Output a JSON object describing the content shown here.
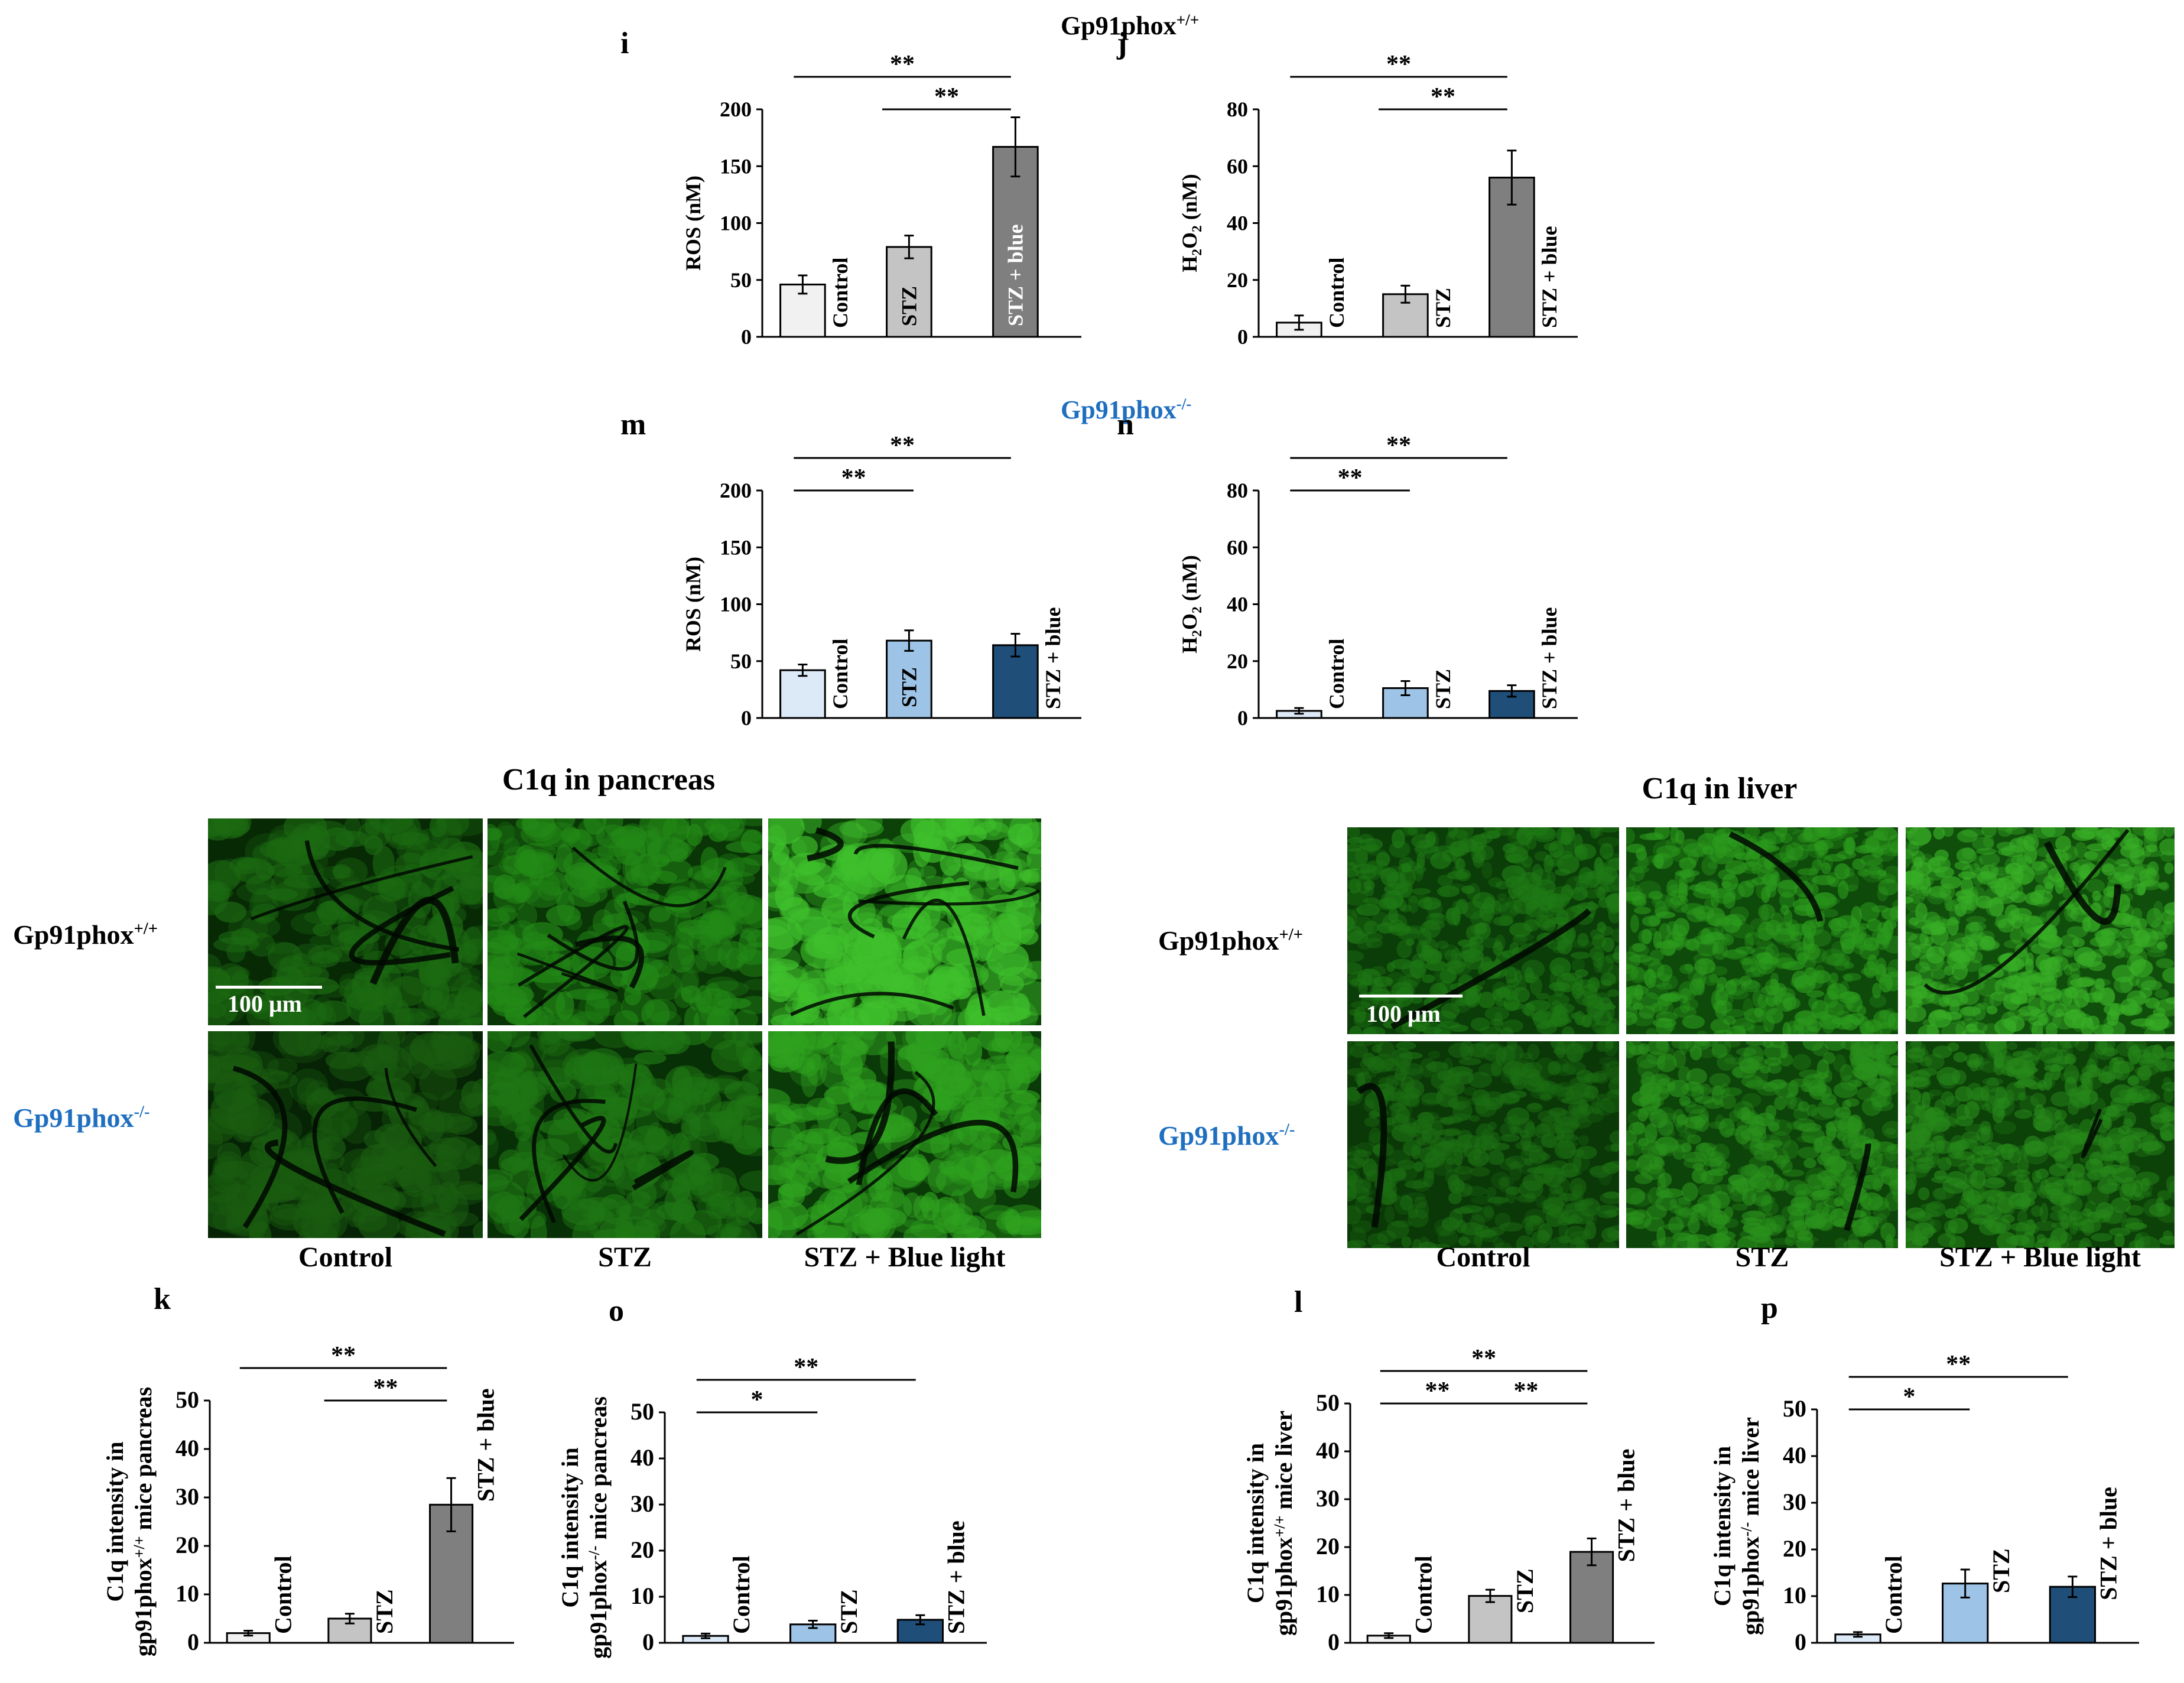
{
  "top_titles": {
    "wt": "Gp91phox+/+",
    "ko": "Gp91phox-/-"
  },
  "colors": {
    "control_wt": "#f1f1f1",
    "stz_wt": "#c4c4c4",
    "stzblue_wt": "#7f7f7f",
    "control_ko": "#dce9f7",
    "stz_ko": "#9dc3e6",
    "stzblue_ko": "#1f4e79",
    "ko_text": "#1f6fc0"
  },
  "chart_data": [
    {
      "id": "i",
      "type": "bar",
      "panel": "i",
      "ylabel": "ROS (nM)",
      "ylim": [
        0,
        200
      ],
      "yticks": [
        0,
        50,
        100,
        150,
        200
      ],
      "categories": [
        "Control",
        "STZ",
        "STZ + blue"
      ],
      "values": [
        46,
        79,
        167
      ],
      "errors": [
        8,
        10,
        26
      ],
      "colors": [
        "#f1f1f1",
        "#c4c4c4",
        "#7f7f7f"
      ],
      "label_inside": [
        false,
        true,
        true
      ],
      "significance": [
        {
          "from": 0,
          "to": 2,
          "label": "**"
        },
        {
          "from": 1,
          "to": 2,
          "label": "**"
        }
      ]
    },
    {
      "id": "j",
      "type": "bar",
      "panel": "j",
      "ylabel": "H2O2 (nM)",
      "ylim": [
        0,
        80
      ],
      "yticks": [
        0,
        20,
        40,
        60,
        80
      ],
      "categories": [
        "Control",
        "STZ",
        "STZ + blue"
      ],
      "values": [
        5,
        15,
        56
      ],
      "errors": [
        2.5,
        3,
        9.5
      ],
      "colors": [
        "#f1f1f1",
        "#c4c4c4",
        "#7f7f7f"
      ],
      "label_inside": [
        false,
        false,
        false
      ],
      "significance": [
        {
          "from": 0,
          "to": 2,
          "label": "**"
        },
        {
          "from": 1,
          "to": 2,
          "label": "**"
        }
      ]
    },
    {
      "id": "m",
      "type": "bar",
      "panel": "m",
      "ylabel": "ROS (nM)",
      "ylim": [
        0,
        200
      ],
      "yticks": [
        0,
        50,
        100,
        150,
        200
      ],
      "categories": [
        "Control",
        "STZ",
        "STZ + blue"
      ],
      "values": [
        42,
        68,
        64
      ],
      "errors": [
        5,
        9,
        10
      ],
      "colors": [
        "#dce9f7",
        "#9dc3e6",
        "#1f4e79"
      ],
      "label_inside": [
        false,
        true,
        false
      ],
      "significance": [
        {
          "from": 0,
          "to": 1,
          "label": "**"
        },
        {
          "from": 0,
          "to": 2,
          "label": "**"
        }
      ]
    },
    {
      "id": "n",
      "type": "bar",
      "panel": "n",
      "ylabel": "H2O2 (nM)",
      "ylim": [
        0,
        80
      ],
      "yticks": [
        0,
        20,
        40,
        60,
        80
      ],
      "categories": [
        "Control",
        "STZ",
        "STZ + blue"
      ],
      "values": [
        2.5,
        10.5,
        9.5
      ],
      "errors": [
        1,
        2.5,
        2
      ],
      "colors": [
        "#dce9f7",
        "#9dc3e6",
        "#1f4e79"
      ],
      "label_inside": [
        false,
        false,
        false
      ],
      "significance": [
        {
          "from": 0,
          "to": 1,
          "label": "**"
        },
        {
          "from": 0,
          "to": 2,
          "label": "**"
        }
      ]
    },
    {
      "id": "k",
      "type": "bar",
      "panel": "k",
      "ylabel": "C1q intensity in gp91phox+/+ mice pancreas",
      "ylim": [
        0,
        50
      ],
      "yticks": [
        0,
        10,
        20,
        30,
        40,
        50
      ],
      "categories": [
        "Control",
        "STZ",
        "STZ + blue"
      ],
      "values": [
        2,
        5,
        28.5
      ],
      "errors": [
        0.5,
        1,
        5.5
      ],
      "colors": [
        "#f1f1f1",
        "#c4c4c4",
        "#7f7f7f"
      ],
      "label_inside": [
        false,
        false,
        false
      ],
      "significance": [
        {
          "from": 0,
          "to": 2,
          "label": "**"
        },
        {
          "from": 1,
          "to": 2,
          "label": "**"
        }
      ]
    },
    {
      "id": "o",
      "type": "bar",
      "panel": "o",
      "ylabel": "C1q intensity in gp91phox-/- mice pancreas",
      "ylim": [
        0,
        50
      ],
      "yticks": [
        0,
        10,
        20,
        30,
        40,
        50
      ],
      "categories": [
        "Control",
        "STZ",
        "STZ + blue"
      ],
      "values": [
        1.5,
        4,
        5
      ],
      "errors": [
        0.5,
        0.8,
        1
      ],
      "colors": [
        "#dce9f7",
        "#9dc3e6",
        "#1f4e79"
      ],
      "label_inside": [
        false,
        false,
        false
      ],
      "significance": [
        {
          "from": 0,
          "to": 1,
          "label": "*"
        },
        {
          "from": 0,
          "to": 2,
          "label": "**"
        }
      ]
    },
    {
      "id": "l",
      "type": "bar",
      "panel": "l",
      "ylabel": "C1q intensity in gp91phox+/+ mice liver",
      "ylim": [
        0,
        50
      ],
      "yticks": [
        0,
        10,
        20,
        30,
        40,
        50
      ],
      "categories": [
        "Control",
        "STZ",
        "STZ + blue"
      ],
      "values": [
        1.5,
        9.8,
        19
      ],
      "errors": [
        0.5,
        1.3,
        2.8
      ],
      "colors": [
        "#f1f1f1",
        "#c4c4c4",
        "#7f7f7f"
      ],
      "label_inside": [
        false,
        false,
        false
      ],
      "significance": [
        {
          "from": 0,
          "to": 2,
          "label": "**"
        },
        {
          "from": 0,
          "to": 1,
          "label": "**"
        },
        {
          "from": 1,
          "to": 2,
          "label": "**"
        }
      ]
    },
    {
      "id": "p",
      "type": "bar",
      "panel": "p",
      "ylabel": "C1q intensity in gp91phox-/- mice liver",
      "ylim": [
        0,
        50
      ],
      "yticks": [
        0,
        10,
        20,
        30,
        40,
        50
      ],
      "categories": [
        "Control",
        "STZ",
        "STZ + blue"
      ],
      "values": [
        1.8,
        12.7,
        12
      ],
      "errors": [
        0.5,
        3,
        2.2
      ],
      "colors": [
        "#dce9f7",
        "#9dc3e6",
        "#1f4e79"
      ],
      "label_inside": [
        false,
        false,
        false
      ],
      "significance": [
        {
          "from": 0,
          "to": 1,
          "label": "*"
        },
        {
          "from": 0,
          "to": 2,
          "label": "**"
        }
      ]
    }
  ],
  "pancreas": {
    "title": "C1q in pancreas",
    "row_wt": "Gp91phox+/+",
    "row_ko": "Gp91phox-/-",
    "conditions": [
      "Control",
      "STZ",
      "STZ + Blue light"
    ],
    "scale_bar": "100 μm"
  },
  "liver": {
    "title": "C1q in liver",
    "row_wt": "Gp91phox+/+",
    "row_ko": "Gp91phox-/-",
    "conditions": [
      "Control",
      "STZ",
      "STZ + Blue light"
    ],
    "scale_bar": "100 μm"
  }
}
